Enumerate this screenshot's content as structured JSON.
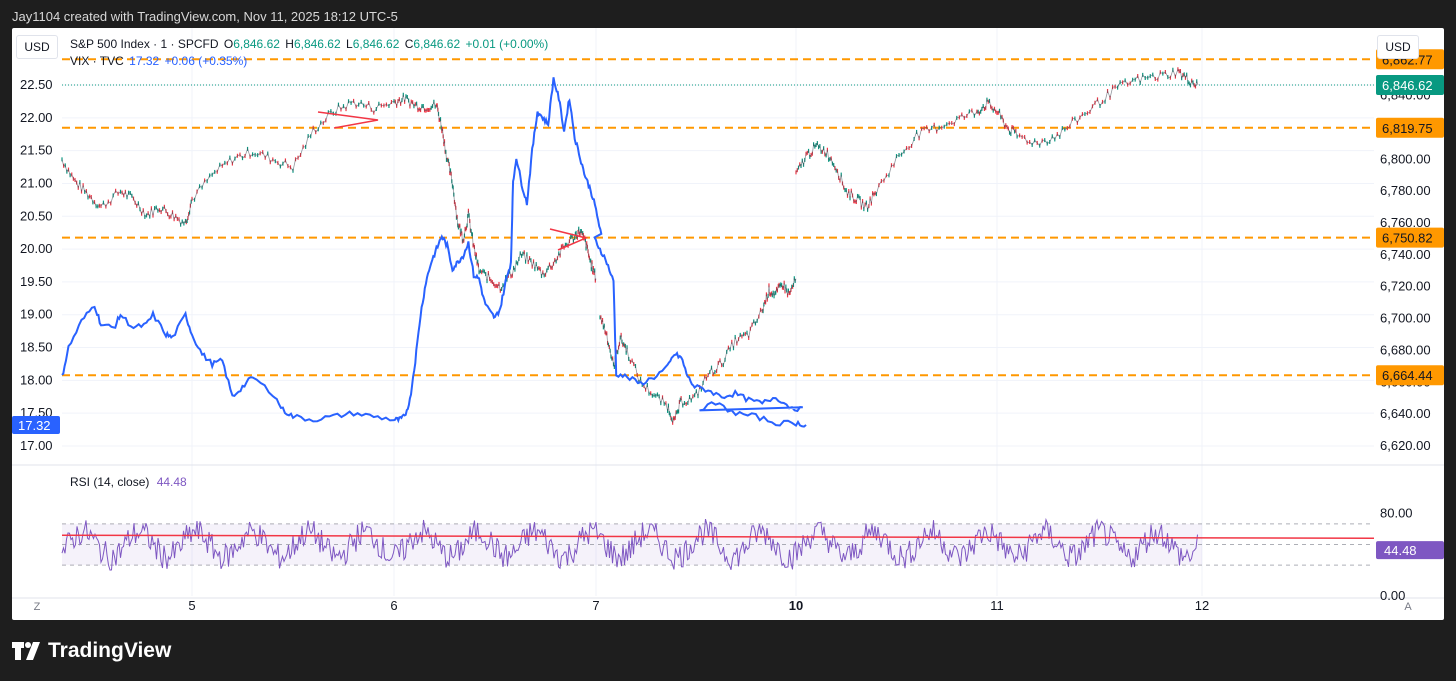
{
  "header": {
    "caption": "Jay1104 created with TradingView.com, Nov 11, 2025 18:12 UTC-5"
  },
  "chart": {
    "currency_left": "USD",
    "currency_right": "USD",
    "main_symbol": {
      "name": "S&P 500 Index · 1 · SPCFD",
      "o_label": "O",
      "o": "6,846.62",
      "h_label": "H",
      "h": "6,846.62",
      "l_label": "L",
      "l": "6,846.62",
      "c_label": "C",
      "c": "6,846.62",
      "change": "+0.01 (+0.00%)"
    },
    "overlay_symbol": {
      "name": "VIX · TVC",
      "last": "17.32",
      "change": "+0.06 (+0.35%)"
    },
    "rsi": {
      "label": "RSI (14, close)",
      "value": "44.48"
    },
    "corner_left": "Z",
    "corner_right": "A"
  },
  "chart_data": {
    "type": "line",
    "x_ticks": [
      "5",
      "6",
      "7",
      "10",
      "11",
      "12"
    ],
    "left_axis": {
      "ticks": [
        "22.50",
        "22.00",
        "21.50",
        "21.00",
        "20.50",
        "20.00",
        "19.50",
        "19.00",
        "18.50",
        "18.00",
        "17.50",
        "17.00"
      ],
      "range": [
        17.0,
        22.5
      ],
      "last_badge": "17.32"
    },
    "right_axis": {
      "ticks": [
        "6,840.00",
        "6,800.00",
        "6,780.00",
        "6,760.00",
        "6,740.00",
        "6,720.00",
        "6,700.00",
        "6,680.00",
        "6,660.00",
        "6,640.00",
        "6,620.00"
      ],
      "range": [
        6620,
        6846.62
      ]
    },
    "horizontal_levels": [
      {
        "value": 6862.77,
        "label": "6,862.77"
      },
      {
        "value": 6819.75,
        "label": "6,819.75"
      },
      {
        "value": 6750.82,
        "label": "6,750.82"
      },
      {
        "value": 6664.44,
        "label": "6,664.44"
      }
    ],
    "spx_last_badge": "6,846.62",
    "series": [
      {
        "name": "S&P 500 Index",
        "session_points": [
          [
            [
              4.0,
              6800
            ],
            [
              4.1,
              6786
            ],
            [
              4.2,
              6778
            ],
            [
              4.3,
              6770
            ],
            [
              4.45,
              6780
            ],
            [
              4.55,
              6775
            ],
            [
              4.65,
              6765
            ],
            [
              4.75,
              6770
            ],
            [
              4.85,
              6765
            ],
            [
              4.95,
              6760
            ],
            [
              5.0,
              6775
            ],
            [
              5.1,
              6790
            ],
            [
              5.2,
              6800
            ],
            [
              5.3,
              6805
            ],
            [
              5.4,
              6800
            ],
            [
              5.5,
              6795
            ],
            [
              5.6,
              6818
            ],
            [
              5.7,
              6830
            ],
            [
              5.8,
              6836
            ],
            [
              5.9,
              6832
            ],
            [
              6.0,
              6836
            ],
            [
              6.1,
              6838
            ],
            [
              6.2,
              6834
            ],
            [
              6.3,
              6833
            ],
            [
              6.4,
              6834
            ],
            [
              6.45,
              6820
            ],
            [
              6.5,
              6800
            ],
            [
              6.55,
              6785
            ],
            [
              6.6,
              6760
            ],
            [
              6.65,
              6750
            ],
            [
              6.7,
              6765
            ],
            [
              6.75,
              6745
            ],
            [
              6.8,
              6730
            ],
            [
              6.9,
              6725
            ],
            [
              7.0,
              6720
            ],
            [
              7.1,
              6728
            ],
            [
              7.2,
              6740
            ],
            [
              7.3,
              6735
            ],
            [
              7.4,
              6728
            ],
            [
              7.5,
              6735
            ],
            [
              7.6,
              6745
            ],
            [
              7.7,
              6752
            ],
            [
              7.75,
              6755
            ],
            [
              7.8,
              6748
            ],
            [
              7.85,
              6735
            ],
            [
              7.9,
              6725
            ]
          ],
          [
            [
              8.0,
              6702
            ],
            [
              8.05,
              6690
            ],
            [
              8.1,
              6670
            ],
            [
              8.15,
              6688
            ],
            [
              8.2,
              6680
            ],
            [
              8.3,
              6660
            ],
            [
              8.4,
              6652
            ],
            [
              8.5,
              6645
            ],
            [
              8.55,
              6635
            ],
            [
              8.6,
              6648
            ],
            [
              8.7,
              6650
            ],
            [
              8.8,
              6665
            ],
            [
              8.9,
              6672
            ],
            [
              9.0,
              6686
            ],
            [
              9.1,
              6690
            ],
            [
              9.2,
              6705
            ],
            [
              9.25,
              6718
            ],
            [
              9.3,
              6715
            ],
            [
              9.35,
              6722
            ],
            [
              9.4,
              6715
            ],
            [
              9.45,
              6725
            ]
          ],
          [
            [
              10.0,
              6790
            ],
            [
              10.05,
              6802
            ],
            [
              10.1,
              6808
            ],
            [
              10.15,
              6805
            ],
            [
              10.2,
              6795
            ],
            [
              10.25,
              6780
            ],
            [
              10.3,
              6775
            ],
            [
              10.35,
              6770
            ],
            [
              10.4,
              6780
            ],
            [
              10.5,
              6800
            ],
            [
              10.6,
              6815
            ],
            [
              10.7,
              6820
            ],
            [
              10.8,
              6825
            ],
            [
              10.9,
              6830
            ],
            [
              10.95,
              6835
            ],
            [
              11.0,
              6830
            ]
          ],
          [
            [
              11.0,
              6830
            ],
            [
              11.05,
              6820
            ],
            [
              11.1,
              6815
            ],
            [
              11.2,
              6810
            ],
            [
              11.3,
              6815
            ],
            [
              11.4,
              6825
            ],
            [
              11.5,
              6835
            ],
            [
              11.6,
              6845
            ],
            [
              11.7,
              6850
            ],
            [
              11.8,
              6852
            ],
            [
              11.9,
              6855
            ],
            [
              11.95,
              6850
            ],
            [
              12.0,
              6846.62
            ]
          ]
        ]
      },
      {
        "name": "VIX",
        "points": [
          [
            4.0,
            18.05
          ],
          [
            4.05,
            18.5
          ],
          [
            4.15,
            18.9
          ],
          [
            4.25,
            19.15
          ],
          [
            4.3,
            18.85
          ],
          [
            4.4,
            18.8
          ],
          [
            4.45,
            19.0
          ],
          [
            4.55,
            18.8
          ],
          [
            4.65,
            18.85
          ],
          [
            4.7,
            19.0
          ],
          [
            4.8,
            18.7
          ],
          [
            4.85,
            18.65
          ],
          [
            4.95,
            19.0
          ],
          [
            5.0,
            18.7
          ],
          [
            5.05,
            18.4
          ],
          [
            5.1,
            18.25
          ],
          [
            5.15,
            18.3
          ],
          [
            5.2,
            17.75
          ],
          [
            5.25,
            17.9
          ],
          [
            5.3,
            18.05
          ],
          [
            5.4,
            17.8
          ],
          [
            5.45,
            17.55
          ],
          [
            5.5,
            17.45
          ],
          [
            5.6,
            17.4
          ],
          [
            5.7,
            17.45
          ],
          [
            5.8,
            17.5
          ],
          [
            5.9,
            17.45
          ],
          [
            6.0,
            17.4
          ],
          [
            6.05,
            17.4
          ],
          [
            6.1,
            17.45
          ],
          [
            6.15,
            17.7
          ],
          [
            6.2,
            18.3
          ],
          [
            6.25,
            19.0
          ],
          [
            6.3,
            19.5
          ],
          [
            6.35,
            19.8
          ],
          [
            6.4,
            20.0
          ],
          [
            6.45,
            20.2
          ],
          [
            6.5,
            20.05
          ],
          [
            6.55,
            19.7
          ],
          [
            6.6,
            19.8
          ],
          [
            6.65,
            19.9
          ],
          [
            6.7,
            20.1
          ],
          [
            6.75,
            19.6
          ],
          [
            6.8,
            19.55
          ],
          [
            6.85,
            19.2
          ],
          [
            6.9,
            19.05
          ],
          [
            6.95,
            18.95
          ],
          [
            7.0,
            19.1
          ],
          [
            7.05,
            19.5
          ],
          [
            7.1,
            19.8
          ],
          [
            7.12,
            21.0
          ],
          [
            7.15,
            21.4
          ],
          [
            7.2,
            21.0
          ],
          [
            7.25,
            20.7
          ],
          [
            7.3,
            21.5
          ],
          [
            7.35,
            22.1
          ],
          [
            7.4,
            22.0
          ],
          [
            7.45,
            21.9
          ],
          [
            7.5,
            22.6
          ],
          [
            7.55,
            22.3
          ],
          [
            7.6,
            21.8
          ],
          [
            7.65,
            22.3
          ],
          [
            7.7,
            21.7
          ],
          [
            7.75,
            21.4
          ],
          [
            7.8,
            21.1
          ],
          [
            7.85,
            20.9
          ],
          [
            7.9,
            20.6
          ],
          [
            7.95,
            20.2
          ],
          [
            8.0,
            20.0
          ],
          [
            8.05,
            19.8
          ],
          [
            8.1,
            19.5
          ],
          [
            8.12,
            18.1
          ],
          [
            8.2,
            18.05
          ],
          [
            8.3,
            17.95
          ],
          [
            8.4,
            18.05
          ],
          [
            8.5,
            18.2
          ],
          [
            8.55,
            18.4
          ],
          [
            8.6,
            18.35
          ],
          [
            8.65,
            18.05
          ],
          [
            8.7,
            17.9
          ],
          [
            8.8,
            17.85
          ],
          [
            8.9,
            17.75
          ],
          [
            9.0,
            17.8
          ],
          [
            9.1,
            17.7
          ],
          [
            9.2,
            17.65
          ],
          [
            9.3,
            17.75
          ],
          [
            9.4,
            17.6
          ],
          [
            9.5,
            17.55
          ],
          [
            9.6,
            17.65
          ],
          [
            9.7,
            17.5
          ],
          [
            9.8,
            17.45
          ],
          [
            9.9,
            17.35
          ],
          [
            10.0,
            17.35
          ],
          [
            10.05,
            17.32
          ]
        ]
      },
      {
        "name": "RSI",
        "levels": [
          70,
          50,
          30
        ],
        "ma_value": 59
      }
    ]
  }
}
